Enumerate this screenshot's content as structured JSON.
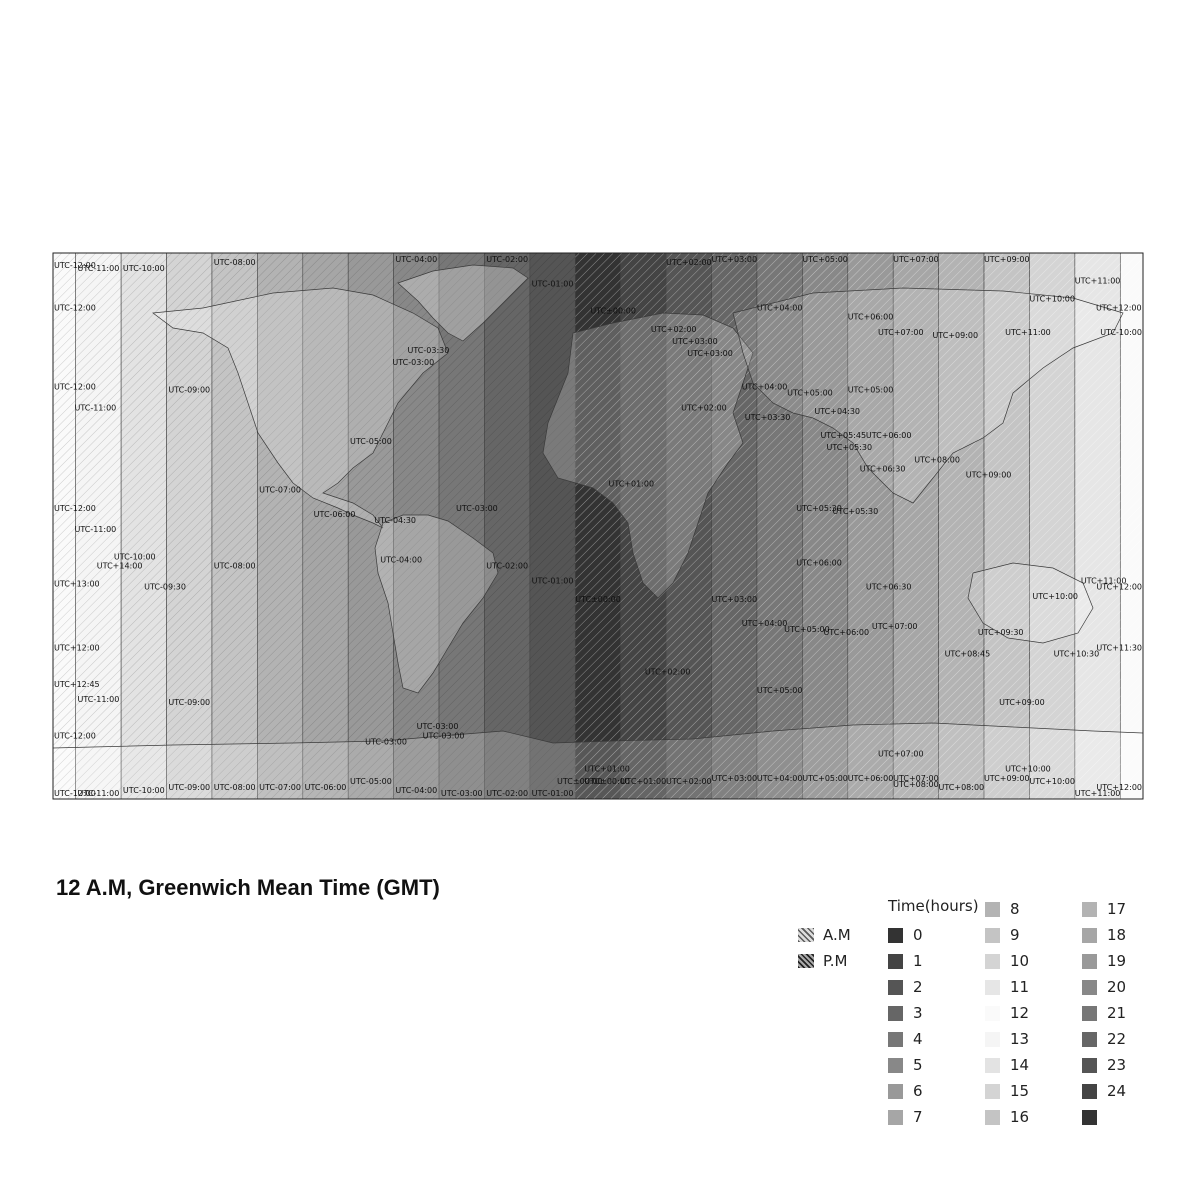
{
  "title": "12 A.M, Greenwich Mean Time (GMT)",
  "ampm_legend": [
    {
      "label": "A.M",
      "pattern": "am-hatch"
    },
    {
      "label": "P.M",
      "pattern": "pm-hatch"
    }
  ],
  "time_legend": {
    "title": "Time(hours)",
    "items": [
      {
        "label": "0",
        "color": "#333333"
      },
      {
        "label": "1",
        "color": "#444444"
      },
      {
        "label": "2",
        "color": "#555555"
      },
      {
        "label": "3",
        "color": "#666666"
      },
      {
        "label": "4",
        "color": "#777777"
      },
      {
        "label": "5",
        "color": "#888888"
      },
      {
        "label": "6",
        "color": "#999999"
      },
      {
        "label": "7",
        "color": "#a6a6a6"
      },
      {
        "label": "8",
        "color": "#b3b3b3"
      },
      {
        "label": "9",
        "color": "#c4c4c4"
      },
      {
        "label": "10",
        "color": "#d4d4d4"
      },
      {
        "label": "11",
        "color": "#e6e6e6"
      },
      {
        "label": "12",
        "color": "#fafafa"
      },
      {
        "label": "13",
        "color": "#f5f5f5"
      },
      {
        "label": "14",
        "color": "#e3e3e3"
      },
      {
        "label": "15",
        "color": "#d4d4d4"
      },
      {
        "label": "16",
        "color": "#c4c4c4"
      },
      {
        "label": "17",
        "color": "#b3b3b3"
      },
      {
        "label": "18",
        "color": "#a6a6a6"
      },
      {
        "label": "19",
        "color": "#999999"
      },
      {
        "label": "20",
        "color": "#888888"
      },
      {
        "label": "21",
        "color": "#777777"
      },
      {
        "label": "22",
        "color": "#666666"
      },
      {
        "label": "23",
        "color": "#555555"
      },
      {
        "label": "24",
        "color": "#444444"
      },
      {
        "label": "",
        "color": "#333333"
      }
    ]
  },
  "map": {
    "bands": [
      {
        "offset": -12,
        "hour": 12,
        "period": "pm"
      },
      {
        "offset": -11,
        "hour": 13,
        "period": "pm"
      },
      {
        "offset": -10,
        "hour": 14,
        "period": "pm"
      },
      {
        "offset": -9,
        "hour": 15,
        "period": "pm"
      },
      {
        "offset": -8,
        "hour": 16,
        "period": "pm"
      },
      {
        "offset": -7,
        "hour": 17,
        "period": "pm"
      },
      {
        "offset": -6,
        "hour": 18,
        "period": "pm"
      },
      {
        "offset": -5,
        "hour": 19,
        "period": "pm"
      },
      {
        "offset": -4,
        "hour": 20,
        "period": "pm"
      },
      {
        "offset": -3,
        "hour": 21,
        "period": "pm"
      },
      {
        "offset": -2,
        "hour": 22,
        "period": "pm"
      },
      {
        "offset": -1,
        "hour": 23,
        "period": "pm"
      },
      {
        "offset": 0,
        "hour": 0,
        "period": "am"
      },
      {
        "offset": 1,
        "hour": 1,
        "period": "am"
      },
      {
        "offset": 2,
        "hour": 2,
        "period": "am"
      },
      {
        "offset": 3,
        "hour": 3,
        "period": "am"
      },
      {
        "offset": 4,
        "hour": 4,
        "period": "am"
      },
      {
        "offset": 5,
        "hour": 5,
        "period": "am"
      },
      {
        "offset": 6,
        "hour": 6,
        "period": "am"
      },
      {
        "offset": 7,
        "hour": 7,
        "period": "am"
      },
      {
        "offset": 8,
        "hour": 8,
        "period": "am"
      },
      {
        "offset": 9,
        "hour": 9,
        "period": "am"
      },
      {
        "offset": 10,
        "hour": 10,
        "period": "am"
      },
      {
        "offset": 11,
        "hour": 11,
        "period": "am"
      },
      {
        "offset": 12,
        "hour": 12,
        "period": "am"
      }
    ],
    "zone_labels": [
      {
        "text": "UTC-12:00",
        "lon": -179.5,
        "lat": 85
      },
      {
        "text": "UTC-11:00",
        "lon": -165,
        "lat": 84
      },
      {
        "text": "UTC-10:00",
        "lon": -150,
        "lat": 84
      },
      {
        "text": "UTC-08:00",
        "lon": -120,
        "lat": 86
      },
      {
        "text": "UTC-04:00",
        "lon": -60,
        "lat": 89
      },
      {
        "text": "UTC-02:00",
        "lon": -30,
        "lat": 89
      },
      {
        "text": "UTC-01:00",
        "lon": -15,
        "lat": 79
      },
      {
        "text": "UTC+02:00",
        "lon": 30,
        "lat": 86
      },
      {
        "text": "UTC+03:00",
        "lon": 45,
        "lat": 89
      },
      {
        "text": "UTC+05:00",
        "lon": 75,
        "lat": 88
      },
      {
        "text": "UTC+07:00",
        "lon": 105,
        "lat": 88
      },
      {
        "text": "UTC+09:00",
        "lon": 135,
        "lat": 87
      },
      {
        "text": "UTC+11:00",
        "lon": 165,
        "lat": 80
      },
      {
        "text": "UTC-12:00",
        "lon": -179.5,
        "lat": 71
      },
      {
        "text": "UTC±00:00",
        "lon": 5,
        "lat": 70
      },
      {
        "text": "UTC+04:00",
        "lon": 60,
        "lat": 71
      },
      {
        "text": "UTC+10:00",
        "lon": 150,
        "lat": 74
      },
      {
        "text": "UTC+12:00",
        "lon": 172,
        "lat": 71
      },
      {
        "text": "UTC+06:00",
        "lon": 90,
        "lat": 68
      },
      {
        "text": "UTC+02:00",
        "lon": 25,
        "lat": 64
      },
      {
        "text": "UTC+03:00",
        "lon": 32,
        "lat": 60
      },
      {
        "text": "UTC+03:00",
        "lon": 37,
        "lat": 56
      },
      {
        "text": "UTC+07:00",
        "lon": 100,
        "lat": 63
      },
      {
        "text": "UTC+09:00",
        "lon": 118,
        "lat": 62
      },
      {
        "text": "UTC+11:00",
        "lon": 142,
        "lat": 63
      },
      {
        "text": "UTC-10:00",
        "lon": 178,
        "lat": 63
      },
      {
        "text": "UTC-03:30",
        "lon": -56,
        "lat": 57
      },
      {
        "text": "UTC-03:00",
        "lon": -61,
        "lat": 53
      },
      {
        "text": "UTC-12:00",
        "lon": -179.5,
        "lat": 45
      },
      {
        "text": "UTC-09:00",
        "lon": -135,
        "lat": 44
      },
      {
        "text": "UTC-11:00",
        "lon": -166,
        "lat": 38
      },
      {
        "text": "UTC+04:00",
        "lon": 55,
        "lat": 45
      },
      {
        "text": "UTC+05:00",
        "lon": 70,
        "lat": 43
      },
      {
        "text": "UTC+05:00",
        "lon": 90,
        "lat": 44
      },
      {
        "text": "UTC+02:00",
        "lon": 35,
        "lat": 38
      },
      {
        "text": "UTC+03:30",
        "lon": 56,
        "lat": 35
      },
      {
        "text": "UTC+04:30",
        "lon": 79,
        "lat": 37
      },
      {
        "text": "UTC+05:45",
        "lon": 81,
        "lat": 29
      },
      {
        "text": "UTC+05:30",
        "lon": 83,
        "lat": 25
      },
      {
        "text": "UTC+06:00",
        "lon": 96,
        "lat": 29
      },
      {
        "text": "UTC-05:00",
        "lon": -75,
        "lat": 27
      },
      {
        "text": "UTC+06:30",
        "lon": 94,
        "lat": 18
      },
      {
        "text": "UTC+08:00",
        "lon": 112,
        "lat": 21
      },
      {
        "text": "UTC+09:00",
        "lon": 129,
        "lat": 16
      },
      {
        "text": "UTC+01:00",
        "lon": 11,
        "lat": 13
      },
      {
        "text": "UTC-07:00",
        "lon": -105,
        "lat": 11
      },
      {
        "text": "UTC-12:00",
        "lon": -179.5,
        "lat": 5
      },
      {
        "text": "UTC-03:00",
        "lon": -40,
        "lat": 5
      },
      {
        "text": "UTC-06:00",
        "lon": -87,
        "lat": 3
      },
      {
        "text": "UTC-04:30",
        "lon": -67,
        "lat": 1
      },
      {
        "text": "UTC+05:30",
        "lon": 73,
        "lat": 5
      },
      {
        "text": "UTC+05:30",
        "lon": 85,
        "lat": 4
      },
      {
        "text": "UTC-11:00",
        "lon": -166,
        "lat": -2
      },
      {
        "text": "UTC-04:00",
        "lon": -65,
        "lat": -12
      },
      {
        "text": "UTC-10:00",
        "lon": -153,
        "lat": -11
      },
      {
        "text": "UTC+14:00",
        "lon": -158,
        "lat": -14
      },
      {
        "text": "UTC-08:00",
        "lon": -120,
        "lat": -14
      },
      {
        "text": "UTC-02:00",
        "lon": -30,
        "lat": -14
      },
      {
        "text": "UTC+06:00",
        "lon": 73,
        "lat": -13
      },
      {
        "text": "UTC+13:00",
        "lon": -179.5,
        "lat": -20
      },
      {
        "text": "UTC-09:30",
        "lon": -143,
        "lat": -21
      },
      {
        "text": "UTC-01:00",
        "lon": -15,
        "lat": -19
      },
      {
        "text": "UTC+11:00",
        "lon": 167,
        "lat": -19
      },
      {
        "text": "UTC+12:00",
        "lon": 179.5,
        "lat": -21
      },
      {
        "text": "UTC+06:30",
        "lon": 96,
        "lat": -21
      },
      {
        "text": "UTC+10:00",
        "lon": 151,
        "lat": -24
      },
      {
        "text": "UTC+03:00",
        "lon": 45,
        "lat": -25
      },
      {
        "text": "UTC±00:00",
        "lon": 0,
        "lat": -25
      },
      {
        "text": "UTC+04:00",
        "lon": 55,
        "lat": -33
      },
      {
        "text": "UTC+05:00",
        "lon": 69,
        "lat": -35
      },
      {
        "text": "UTC+06:00",
        "lon": 82,
        "lat": -36
      },
      {
        "text": "UTC+07:00",
        "lon": 98,
        "lat": -34
      },
      {
        "text": "UTC+09:30",
        "lon": 133,
        "lat": -36
      },
      {
        "text": "UTC+12:00",
        "lon": -179.5,
        "lat": -41
      },
      {
        "text": "UTC+08:45",
        "lon": 122,
        "lat": -43
      },
      {
        "text": "UTC+10:30",
        "lon": 158,
        "lat": -43
      },
      {
        "text": "UTC+11:30",
        "lon": 175,
        "lat": -41
      },
      {
        "text": "UTC+02:00",
        "lon": 23,
        "lat": -49
      },
      {
        "text": "UTC+12:45",
        "lon": -179.5,
        "lat": -53
      },
      {
        "text": "UTC-11:00",
        "lon": -165,
        "lat": -58
      },
      {
        "text": "UTC-09:00",
        "lon": -135,
        "lat": -59
      },
      {
        "text": "UTC+05:00",
        "lon": 60,
        "lat": -55
      },
      {
        "text": "UTC+09:00",
        "lon": 140,
        "lat": -59
      },
      {
        "text": "UTC-12:00",
        "lon": -179.5,
        "lat": -70
      },
      {
        "text": "UTC-03:00",
        "lon": -53,
        "lat": -67
      },
      {
        "text": "UTC-03:00",
        "lon": -51,
        "lat": -70
      },
      {
        "text": "UTC-03:00",
        "lon": -70,
        "lat": -72
      },
      {
        "text": "UTC+07:00",
        "lon": 100,
        "lat": -76
      },
      {
        "text": "UTC+01:00",
        "lon": 3,
        "lat": -81
      },
      {
        "text": "UTC+10:00",
        "lon": 142,
        "lat": -81
      },
      {
        "text": "UTC±00:00",
        "lon": -6,
        "lat": -85
      },
      {
        "text": "UTC±00:00",
        "lon": 3,
        "lat": -85
      },
      {
        "text": "UTC+01:00",
        "lon": 15,
        "lat": -85
      },
      {
        "text": "UTC+02:00",
        "lon": 30,
        "lat": -85
      },
      {
        "text": "UTC+03:00",
        "lon": 45,
        "lat": -84
      },
      {
        "text": "UTC+04:00",
        "lon": 60,
        "lat": -84
      },
      {
        "text": "UTC+05:00",
        "lon": 75,
        "lat": -84
      },
      {
        "text": "UTC+06:00",
        "lon": 90,
        "lat": -84
      },
      {
        "text": "UTC+07:00",
        "lon": 105,
        "lat": -84
      },
      {
        "text": "UTC+08:00",
        "lon": 105,
        "lat": -86
      },
      {
        "text": "UTC+08:00",
        "lon": 120,
        "lat": -87
      },
      {
        "text": "UTC+09:00",
        "lon": 135,
        "lat": -84
      },
      {
        "text": "UTC+10:00",
        "lon": 150,
        "lat": -85
      },
      {
        "text": "UTC-12:00",
        "lon": -179.5,
        "lat": -89
      },
      {
        "text": "UTC-11:00",
        "lon": -165,
        "lat": -89
      },
      {
        "text": "UTC-10:00",
        "lon": -150,
        "lat": -88
      },
      {
        "text": "UTC-09:00",
        "lon": -135,
        "lat": -87
      },
      {
        "text": "UTC-08:00",
        "lon": -120,
        "lat": -87
      },
      {
        "text": "UTC-07:00",
        "lon": -105,
        "lat": -87
      },
      {
        "text": "UTC-06:00",
        "lon": -90,
        "lat": -87
      },
      {
        "text": "UTC-05:00",
        "lon": -75,
        "lat": -85
      },
      {
        "text": "UTC-04:00",
        "lon": -60,
        "lat": -88
      },
      {
        "text": "UTC-03:00",
        "lon": -45,
        "lat": -93
      },
      {
        "text": "UTC-02:00",
        "lon": -30,
        "lat": -89
      },
      {
        "text": "UTC-01:00",
        "lon": -15,
        "lat": -90
      },
      {
        "text": "UTC+11:00",
        "lon": 165,
        "lat": -89
      },
      {
        "text": "UTC+12:00",
        "lon": 179.5,
        "lat": -87
      }
    ]
  }
}
